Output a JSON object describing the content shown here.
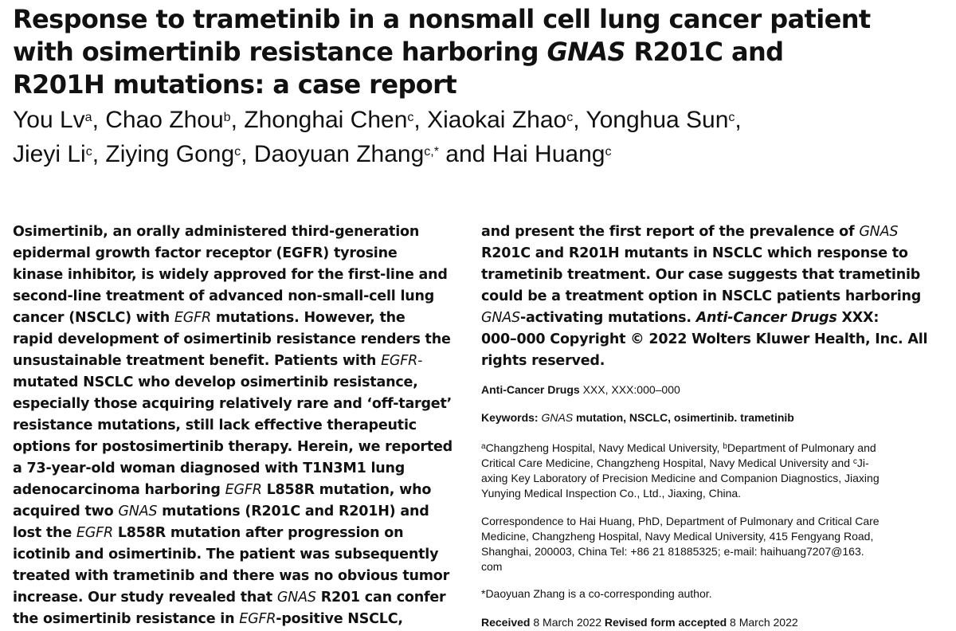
{
  "title": {
    "line1": "Response to trametinib in a nonsmall cell lung cancer patient",
    "line2_pre": "with osimertinib resistance harboring ",
    "line2_gene": "GNAS",
    "line2_post": " R201C and",
    "line3": "R201H mutations: a case report"
  },
  "authors": [
    {
      "name": "You Lv",
      "aff": "a",
      "sep": ", "
    },
    {
      "name": "Chao Zhou",
      "aff": "b",
      "sep": ", "
    },
    {
      "name": "Zhonghai Chen",
      "aff": "c",
      "sep": ", "
    },
    {
      "name": "Xiaokai Zhao",
      "aff": "c",
      "sep": ", "
    },
    {
      "name": "Yonghua Sun",
      "aff": "c",
      "sep": ","
    },
    {
      "name": "Jieyi Li",
      "aff": "c",
      "sep": ", "
    },
    {
      "name": "Ziying Gong",
      "aff": "c",
      "sep": ", "
    },
    {
      "name": "Daoyuan Zhang",
      "aff": "c,*",
      "sep": " and "
    },
    {
      "name": "Hai Huang",
      "aff": "c",
      "sep": ""
    }
  ],
  "abstract": {
    "col1": [
      [
        [
          "Osimertinib, an orally administered third-generation",
          ""
        ]
      ],
      [
        [
          "epidermal growth factor receptor (EGFR) tyrosine",
          ""
        ]
      ],
      [
        [
          "kinase inhibitor, is widely approved for the first-line and",
          ""
        ]
      ],
      [
        [
          "second-line treatment of advanced non-small-cell lung",
          ""
        ]
      ],
      [
        [
          "cancer (NSCLC) with ",
          ""
        ],
        [
          "EGFR",
          "i"
        ],
        [
          " mutations. However, the",
          ""
        ]
      ],
      [
        [
          "rapid development of osimertinib resistance renders the",
          ""
        ]
      ],
      [
        [
          "unsustainable treatment benefit. Patients with ",
          ""
        ],
        [
          "EGFR-",
          "i"
        ]
      ],
      [
        [
          "mutated NSCLC who develop osimertinib resistance,",
          ""
        ]
      ],
      [
        [
          "especially those acquiring relatively rare and ‘off-target’",
          ""
        ]
      ],
      [
        [
          "resistance mutations, still lack effective therapeutic",
          ""
        ]
      ],
      [
        [
          "options for postosimertinib therapy. Herein, we reported",
          ""
        ]
      ],
      [
        [
          "a 73-year-old woman diagnosed with T1N3M1 lung",
          ""
        ]
      ],
      [
        [
          "adenocarcinoma harboring ",
          ""
        ],
        [
          "EGFR",
          "i"
        ],
        [
          " L858R mutation, who",
          ""
        ]
      ],
      [
        [
          "acquired two ",
          ""
        ],
        [
          "GNAS",
          "i"
        ],
        [
          " mutations (R201C and R201H) and",
          ""
        ]
      ],
      [
        [
          "lost the ",
          ""
        ],
        [
          "EGFR",
          "i"
        ],
        [
          " L858R mutation after progression on",
          ""
        ]
      ],
      [
        [
          "icotinib and osimertinib. The patient was subsequently",
          ""
        ]
      ],
      [
        [
          "treated with trametinib and there was no obvious tumor",
          ""
        ]
      ],
      [
        [
          "increase. Our study revealed that ",
          ""
        ],
        [
          "GNAS",
          "i"
        ],
        [
          " R201 can confer",
          ""
        ]
      ],
      [
        [
          "the osimertinib resistance in ",
          ""
        ],
        [
          "EGFR",
          "i"
        ],
        [
          "-positive NSCLC,",
          ""
        ]
      ]
    ],
    "col2": [
      [
        [
          "and present the first report of the prevalence of ",
          ""
        ],
        [
          "GNAS",
          "i"
        ]
      ],
      [
        [
          "R201C and R201H mutants in NSCLC which response to",
          ""
        ]
      ],
      [
        [
          "trametinib treatment. Our case suggests that trametinib",
          ""
        ]
      ],
      [
        [
          "could be a treatment option in NSCLC patients harboring",
          ""
        ]
      ],
      [
        [
          "GNAS",
          "i"
        ],
        [
          "-activating mutations. ",
          ""
        ],
        [
          "Anti-Cancer Drugs",
          "bi"
        ],
        [
          " XXX:",
          ""
        ]
      ],
      [
        [
          "000–000 Copyright © 2022 Wolters Kluwer Health, Inc. All",
          ""
        ]
      ],
      [
        [
          "rights reserved.",
          ""
        ]
      ]
    ]
  },
  "citation": [
    [
      "Anti-Cancer Drugs",
      "b"
    ],
    [
      " XXX, ",
      ""
    ],
    [
      "XXX",
      ""
    ],
    [
      ":000–000",
      ""
    ]
  ],
  "keywords": [
    [
      "Keywords: ",
      "b"
    ],
    [
      "GNAS",
      "i"
    ],
    [
      " mutation, NSCLC, osimertinib. trametinib",
      "b"
    ]
  ],
  "affiliations": [
    [
      [
        "a",
        "sup"
      ],
      [
        "Changzheng Hospital, Navy Medical University,  ",
        ""
      ],
      [
        "b",
        "sup"
      ],
      [
        "Department of Pulmonary and",
        ""
      ]
    ],
    [
      [
        "Critical Care Medicine, Changzheng Hospital, Navy Medical University and  ",
        ""
      ],
      [
        "c",
        "sup"
      ],
      [
        "Ji-",
        ""
      ]
    ],
    [
      [
        "axing Key Laboratory of Precision Medicine and Companion Diagnostics, Jiaxing",
        ""
      ]
    ],
    [
      [
        "Yunying Medical Inspection Co., Ltd., Jiaxing, China.",
        ""
      ]
    ]
  ],
  "correspondence": [
    "Correspondence to Hai Huang, PhD, Department of Pulmonary and Critical Care",
    "Medicine, Changzheng Hospital, Navy Medical University, 415 Fengyang Road,",
    "Shanghai, 200003, China Tel: +86 21 81885325; e-mail: haihuang7207@163.",
    "com"
  ],
  "co_corresponding": "*Daoyuan Zhang is a co-corresponding author.",
  "dates": [
    [
      "Received",
      "b"
    ],
    [
      " 8 March 2022 ",
      ""
    ],
    [
      "Revised form accepted",
      "b"
    ],
    [
      " 8 March 2022",
      ""
    ]
  ]
}
